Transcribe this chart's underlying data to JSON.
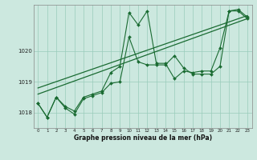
{
  "xlabel": "Graphe pression niveau de la mer (hPa)",
  "background_color": "#cce8df",
  "grid_color": "#99ccbb",
  "line_color": "#1a6b32",
  "ylim": [
    1017.5,
    1021.5
  ],
  "xlim": [
    -0.5,
    23.5
  ],
  "yticks": [
    1018,
    1019,
    1020
  ],
  "xticks": [
    0,
    1,
    2,
    3,
    4,
    5,
    6,
    7,
    8,
    9,
    10,
    11,
    12,
    13,
    14,
    15,
    16,
    17,
    18,
    19,
    20,
    21,
    22,
    23
  ],
  "series1": [
    1018.3,
    1017.85,
    1018.5,
    1018.2,
    1018.05,
    1018.5,
    1018.6,
    1018.7,
    1019.3,
    1019.5,
    1021.25,
    1020.85,
    1021.3,
    1019.6,
    1019.6,
    1019.1,
    1019.35,
    1019.3,
    1019.35,
    1019.35,
    1020.1,
    1021.3,
    1021.35,
    1021.1
  ],
  "series2": [
    1018.3,
    1017.85,
    1018.5,
    1018.15,
    1017.95,
    1018.45,
    1018.55,
    1018.65,
    1018.95,
    1019.0,
    1020.45,
    1019.65,
    1019.55,
    1019.55,
    1019.55,
    1019.85,
    1019.45,
    1019.25,
    1019.25,
    1019.25,
    1019.5,
    1021.3,
    1021.3,
    1021.05
  ],
  "trend1_x": [
    0,
    23
  ],
  "trend1_y": [
    1018.6,
    1021.05
  ],
  "trend2_x": [
    0,
    23
  ],
  "trend2_y": [
    1018.8,
    1021.15
  ]
}
